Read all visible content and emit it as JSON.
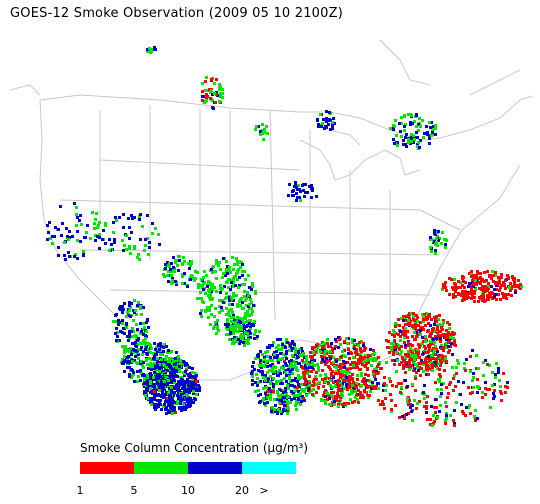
{
  "title": "GOES-12 Smoke Observation (2009 05 10  2100Z)",
  "legend": {
    "title": "Smoke Column Concentration (μg/m³)",
    "bins": [
      {
        "color": "#ff0000"
      },
      {
        "color": "#00e600"
      },
      {
        "color": "#0000cc"
      },
      {
        "color": "#00ffff"
      }
    ],
    "tick_labels": [
      "1",
      "5",
      "10",
      "20",
      ">"
    ]
  },
  "colors": {
    "boundary": "#c8c8c8",
    "background": "#ffffff"
  }
}
